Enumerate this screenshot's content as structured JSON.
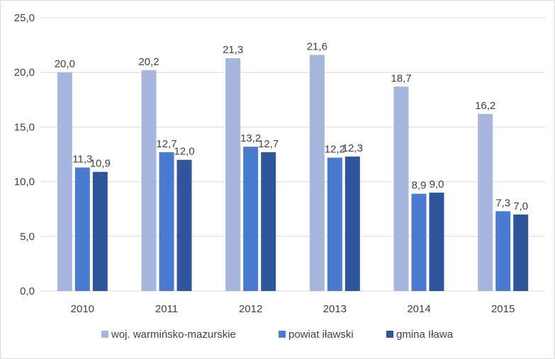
{
  "chart_data": {
    "type": "bar",
    "categories": [
      "2010",
      "2011",
      "2012",
      "2013",
      "2014",
      "2015"
    ],
    "series": [
      {
        "name": "woj. warmińsko-mazurskie",
        "color": "#a6b6de",
        "values": [
          20.0,
          20.2,
          21.3,
          21.6,
          18.7,
          16.2
        ],
        "labels": [
          "20,0",
          "20,2",
          "21,3",
          "21,6",
          "18,7",
          "16,2"
        ]
      },
      {
        "name": "powiat iławski",
        "color": "#4a7bcf",
        "values": [
          11.3,
          12.7,
          13.2,
          12.2,
          8.9,
          7.3
        ],
        "labels": [
          "11,3",
          "12,7",
          "13,2",
          "12,2",
          "8,9",
          "7,3"
        ]
      },
      {
        "name": "gmina Iława",
        "color": "#2f569a",
        "values": [
          10.9,
          12.0,
          12.7,
          12.3,
          9.0,
          7.0
        ],
        "labels": [
          "10,9",
          "12,0",
          "12,7",
          "12,3",
          "9,0",
          "7,0"
        ]
      }
    ],
    "ylim": [
      0,
      25
    ],
    "yticks": [
      0,
      5,
      10,
      15,
      20,
      25
    ],
    "ytick_labels": [
      "0,0",
      "5,0",
      "10,0",
      "15,0",
      "20,0",
      "25,0"
    ],
    "grid": true,
    "legend_position": "bottom",
    "title": "",
    "xlabel": "",
    "ylabel": ""
  }
}
